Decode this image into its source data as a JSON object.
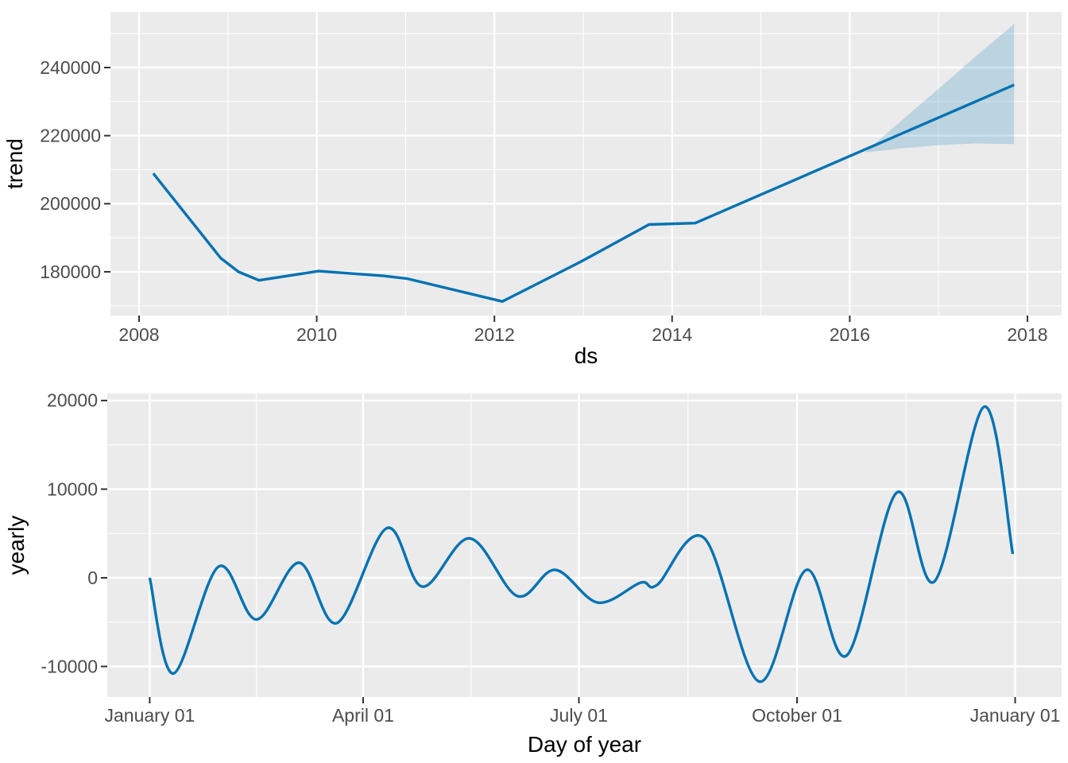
{
  "style": {
    "panel_bg": "#EBEBEB",
    "grid_color": "#FFFFFF",
    "line_color": "#0072B2",
    "ribbon_fill": "#0072B2",
    "ribbon_opacity": 0.2,
    "tick_mark_color": "#333333",
    "tick_label_color": "#4D4D4D",
    "axis_title_color": "#000000"
  },
  "chart_data": [
    {
      "type": "line",
      "name": "trend-component",
      "title": "",
      "xlabel": "ds",
      "ylabel": "trend",
      "grid": true,
      "legend": false,
      "smooth": false,
      "x_domain": [
        2007.678,
        2018.385
      ],
      "y_domain": [
        167160,
        256342
      ],
      "x_ticks": [
        {
          "value": 2008,
          "label": "2008"
        },
        {
          "value": 2010,
          "label": "2010"
        },
        {
          "value": 2012,
          "label": "2012"
        },
        {
          "value": 2014,
          "label": "2014"
        },
        {
          "value": 2016,
          "label": "2016"
        },
        {
          "value": 2018,
          "label": "2018"
        }
      ],
      "x_minor": [
        2009,
        2011,
        2013,
        2015,
        2017
      ],
      "y_ticks": [
        {
          "value": 180000,
          "label": "180000"
        },
        {
          "value": 200000,
          "label": "200000"
        },
        {
          "value": 220000,
          "label": "220000"
        },
        {
          "value": 240000,
          "label": "240000"
        }
      ],
      "y_minor": [
        170000,
        190000,
        210000,
        230000,
        250000
      ],
      "series": [
        {
          "name": "trend",
          "x": [
            2008.16,
            2008.92,
            2009.12,
            2009.35,
            2010.02,
            2010.75,
            2011.02,
            2012.09,
            2012.96,
            2013.74,
            2014.26,
            2017.85
          ],
          "y": [
            208900,
            184000,
            180000,
            177500,
            180200,
            178800,
            178000,
            171300,
            182800,
            193900,
            194300,
            234900
          ]
        }
      ],
      "ribbon": {
        "name": "uncertainty-interval",
        "x": [
          2016.17,
          2016.6,
          2017.0,
          2017.4,
          2017.85
        ],
        "upper": [
          215100,
          224800,
          233800,
          242900,
          252800
        ],
        "lower": [
          215100,
          216300,
          217200,
          217700,
          217500
        ]
      }
    },
    {
      "type": "line",
      "name": "yearly-component",
      "title": "",
      "xlabel": "Day of year",
      "ylabel": "yearly",
      "grid": true,
      "legend": false,
      "smooth": true,
      "x_domain": [
        -17.9,
        384.6
      ],
      "y_domain": [
        -13450,
        20800
      ],
      "x_ticks": [
        {
          "value": 0,
          "label": "January 01"
        },
        {
          "value": 90,
          "label": "April 01"
        },
        {
          "value": 181,
          "label": "July 01"
        },
        {
          "value": 273,
          "label": "October 01"
        },
        {
          "value": 365,
          "label": "January 01"
        }
      ],
      "x_minor": [
        45,
        135.5,
        227,
        319
      ],
      "y_ticks": [
        {
          "value": -10000,
          "label": "-10000"
        },
        {
          "value": 0,
          "label": "0"
        },
        {
          "value": 10000,
          "label": "10000"
        },
        {
          "value": 20000,
          "label": "20000"
        }
      ],
      "y_minor": [
        -5000,
        5000,
        15000
      ],
      "series": [
        {
          "name": "yearly",
          "x": [
            0,
            10,
            29,
            45,
            63,
            79,
            100,
            115,
            135,
            155,
            171,
            189,
            207,
            214,
            234,
            257,
            277,
            294,
            315,
            331,
            352,
            364
          ],
          "y": [
            0,
            -10800,
            1250,
            -4700,
            1700,
            -5100,
            5600,
            -1000,
            4450,
            -2050,
            900,
            -2800,
            -550,
            -800,
            4450,
            -11700,
            900,
            -8750,
            9600,
            -400,
            19300,
            2700
          ]
        }
      ]
    }
  ]
}
